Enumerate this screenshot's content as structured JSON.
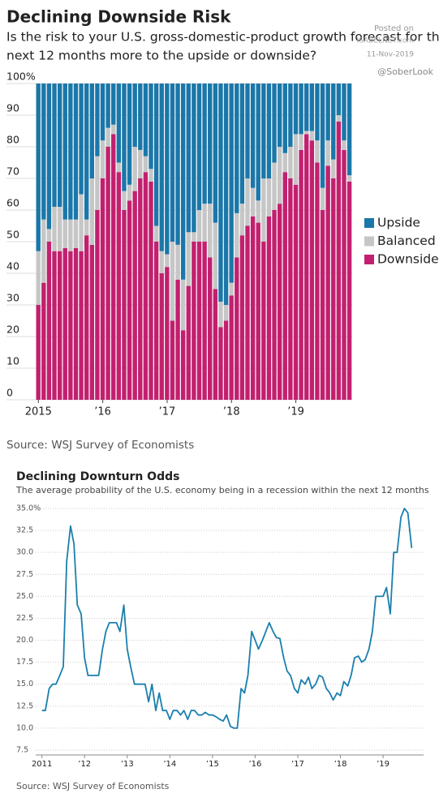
{
  "chart_data": [
    {
      "type": "stacked_bar",
      "title": "Declining Downside Risk",
      "subtitle": [
        "Is the risk to your U.S. gross-domestic-product growth forecast for the",
        "next 12 months more to the upside or downside?"
      ],
      "annotations": [
        "Posted on",
        "ISABELNET.com",
        "11-Nov-2019",
        "@SoberLook"
      ],
      "source": "Source: WSJ Survey of Economists",
      "categories": [
        "2015",
        null,
        null,
        null,
        null,
        null,
        null,
        null,
        null,
        null,
        null,
        null,
        "’16",
        null,
        null,
        null,
        null,
        null,
        null,
        null,
        null,
        null,
        null,
        null,
        "’17",
        null,
        null,
        null,
        null,
        null,
        null,
        null,
        null,
        null,
        null,
        null,
        "’18",
        null,
        null,
        null,
        null,
        null,
        null,
        null,
        null,
        null,
        null,
        null,
        "’19",
        null,
        null,
        null,
        null,
        null,
        null,
        null,
        null,
        null,
        null
      ],
      "series": [
        {
          "name": "Upside",
          "color": "#1b77a9",
          "values": [
            53,
            43,
            46,
            39,
            39,
            43,
            43,
            43,
            35,
            43,
            30,
            23,
            18,
            14,
            13,
            25,
            34,
            32,
            20,
            21,
            23,
            27,
            45,
            53,
            54,
            50,
            51,
            62,
            47,
            47,
            40,
            38,
            38,
            44,
            69,
            70,
            63,
            41,
            38,
            30,
            33,
            37,
            30,
            30,
            25,
            20,
            22,
            20,
            16,
            16,
            15,
            15,
            18,
            33,
            18,
            24,
            10,
            18,
            29
          ]
        },
        {
          "name": "Balanced",
          "color": "#c6c6c6",
          "values": [
            17,
            20,
            4,
            14,
            14,
            9,
            10,
            9,
            18,
            5,
            21,
            17,
            12,
            6,
            3,
            3,
            6,
            5,
            14,
            9,
            5,
            4,
            5,
            7,
            4,
            25,
            11,
            16,
            17,
            3,
            10,
            12,
            17,
            21,
            8,
            5,
            4,
            14,
            10,
            15,
            9,
            7,
            20,
            12,
            15,
            18,
            6,
            10,
            16,
            5,
            1,
            3,
            7,
            7,
            8,
            6,
            2,
            3,
            2
          ]
        },
        {
          "name": "Downside",
          "color": "#c2206f",
          "values": [
            30,
            37,
            50,
            47,
            47,
            48,
            47,
            48,
            47,
            52,
            49,
            60,
            70,
            80,
            84,
            72,
            60,
            63,
            66,
            70,
            72,
            69,
            50,
            40,
            42,
            25,
            38,
            22,
            36,
            50,
            50,
            50,
            45,
            35,
            23,
            25,
            33,
            45,
            52,
            55,
            58,
            56,
            50,
            58,
            60,
            62,
            72,
            70,
            68,
            79,
            84,
            82,
            75,
            60,
            74,
            70,
            88,
            79,
            69
          ]
        }
      ],
      "ylim": [
        0,
        100
      ],
      "yticks": [
        0,
        10,
        20,
        30,
        40,
        50,
        60,
        70,
        80,
        90,
        {
          "value": 100,
          "label": "100%"
        }
      ],
      "grid": true,
      "legend": "right"
    },
    {
      "type": "line",
      "title": "Declining Downturn Odds",
      "subtitle": "The average probability of the U.S. economy being in a recession within the next 12 months",
      "source": "Source: WSJ Survey of Economists",
      "x": [
        2011.0,
        2011.08,
        2011.17,
        2011.25,
        2011.33,
        2011.42,
        2011.5,
        2011.58,
        2011.67,
        2011.75,
        2011.83,
        2011.92,
        2012.0,
        2012.08,
        2012.17,
        2012.25,
        2012.33,
        2012.42,
        2012.5,
        2012.58,
        2012.67,
        2012.75,
        2012.83,
        2012.92,
        2013.0,
        2013.08,
        2013.17,
        2013.25,
        2013.33,
        2013.42,
        2013.5,
        2013.58,
        2013.67,
        2013.75,
        2013.83,
        2013.92,
        2014.0,
        2014.08,
        2014.17,
        2014.25,
        2014.33,
        2014.42,
        2014.5,
        2014.58,
        2014.67,
        2014.75,
        2014.83,
        2014.92,
        2015.0,
        2015.08,
        2015.17,
        2015.25,
        2015.33,
        2015.42,
        2015.5,
        2015.58,
        2015.67,
        2015.75,
        2015.83,
        2015.92,
        2016.0,
        2016.08,
        2016.17,
        2016.33,
        2016.42,
        2016.5,
        2016.58,
        2016.67,
        2016.75,
        2016.83,
        2016.92,
        2017.0,
        2017.08,
        2017.17,
        2017.25,
        2017.33,
        2017.42,
        2017.5,
        2017.58,
        2017.67,
        2017.75,
        2017.83,
        2017.92,
        2018.0,
        2018.08,
        2018.17,
        2018.25,
        2018.33,
        2018.42,
        2018.5,
        2018.58,
        2018.67,
        2018.75,
        2018.83,
        2018.92,
        2019.0,
        2019.08,
        2019.17,
        2019.25,
        2019.33,
        2019.42,
        2019.5,
        2019.58,
        2019.67
      ],
      "series": [
        {
          "color": "#1a7fad",
          "values": [
            12,
            12,
            14.5,
            15,
            15,
            16,
            17,
            29,
            33,
            31,
            24,
            23,
            18,
            16,
            16,
            16,
            16,
            19,
            21,
            22,
            22,
            22,
            21,
            24,
            19,
            17,
            15,
            15,
            15,
            15,
            13,
            15,
            12,
            14,
            12,
            12,
            11,
            12,
            12,
            11.5,
            12,
            11,
            12,
            12,
            11.5,
            11.5,
            11.8,
            11.5,
            11.5,
            11.3,
            11,
            10.8,
            11.5,
            10.2,
            10,
            10,
            14.5,
            14,
            16,
            21,
            20,
            19,
            20,
            22,
            21,
            20.3,
            20.2,
            18,
            16.5,
            16,
            14.5,
            14,
            15.5,
            15,
            15.8,
            14.5,
            15,
            16,
            15.8,
            14.5,
            14,
            13.2,
            14,
            13.7,
            15.3,
            14.8,
            16,
            18,
            18.2,
            17.5,
            17.8,
            19,
            21,
            25,
            25,
            25,
            26,
            23,
            30,
            30,
            34,
            35,
            34.5,
            30.5
          ]
        }
      ],
      "xlim": [
        2010.93,
        2019.95
      ],
      "xticks": [
        {
          "value": 2011,
          "label": "2011"
        },
        {
          "value": 2012,
          "label": "’12"
        },
        {
          "value": 2013,
          "label": "’13"
        },
        {
          "value": 2014,
          "label": "’14"
        },
        {
          "value": 2015,
          "label": "’15"
        },
        {
          "value": 2016,
          "label": "’16"
        },
        {
          "value": 2017,
          "label": "’17"
        },
        {
          "value": 2018,
          "label": "’18"
        },
        {
          "value": 2019,
          "label": "’19"
        }
      ],
      "ylim": [
        7.5,
        35
      ],
      "yticks": [
        {
          "value": 7.5,
          "label": "7.5"
        },
        {
          "value": 10,
          "label": "10.0"
        },
        {
          "value": 12.5,
          "label": "12.5"
        },
        {
          "value": 15,
          "label": "15.0"
        },
        {
          "value": 17.5,
          "label": "17.5"
        },
        {
          "value": 20,
          "label": "20.0"
        },
        {
          "value": 22.5,
          "label": "22.5"
        },
        {
          "value": 25,
          "label": "25.0"
        },
        {
          "value": 27.5,
          "label": "27.5"
        },
        {
          "value": 30,
          "label": "30.0"
        },
        {
          "value": 32.5,
          "label": "32.5"
        },
        {
          "value": 35,
          "label": "35.0%"
        }
      ],
      "grid": true
    }
  ]
}
